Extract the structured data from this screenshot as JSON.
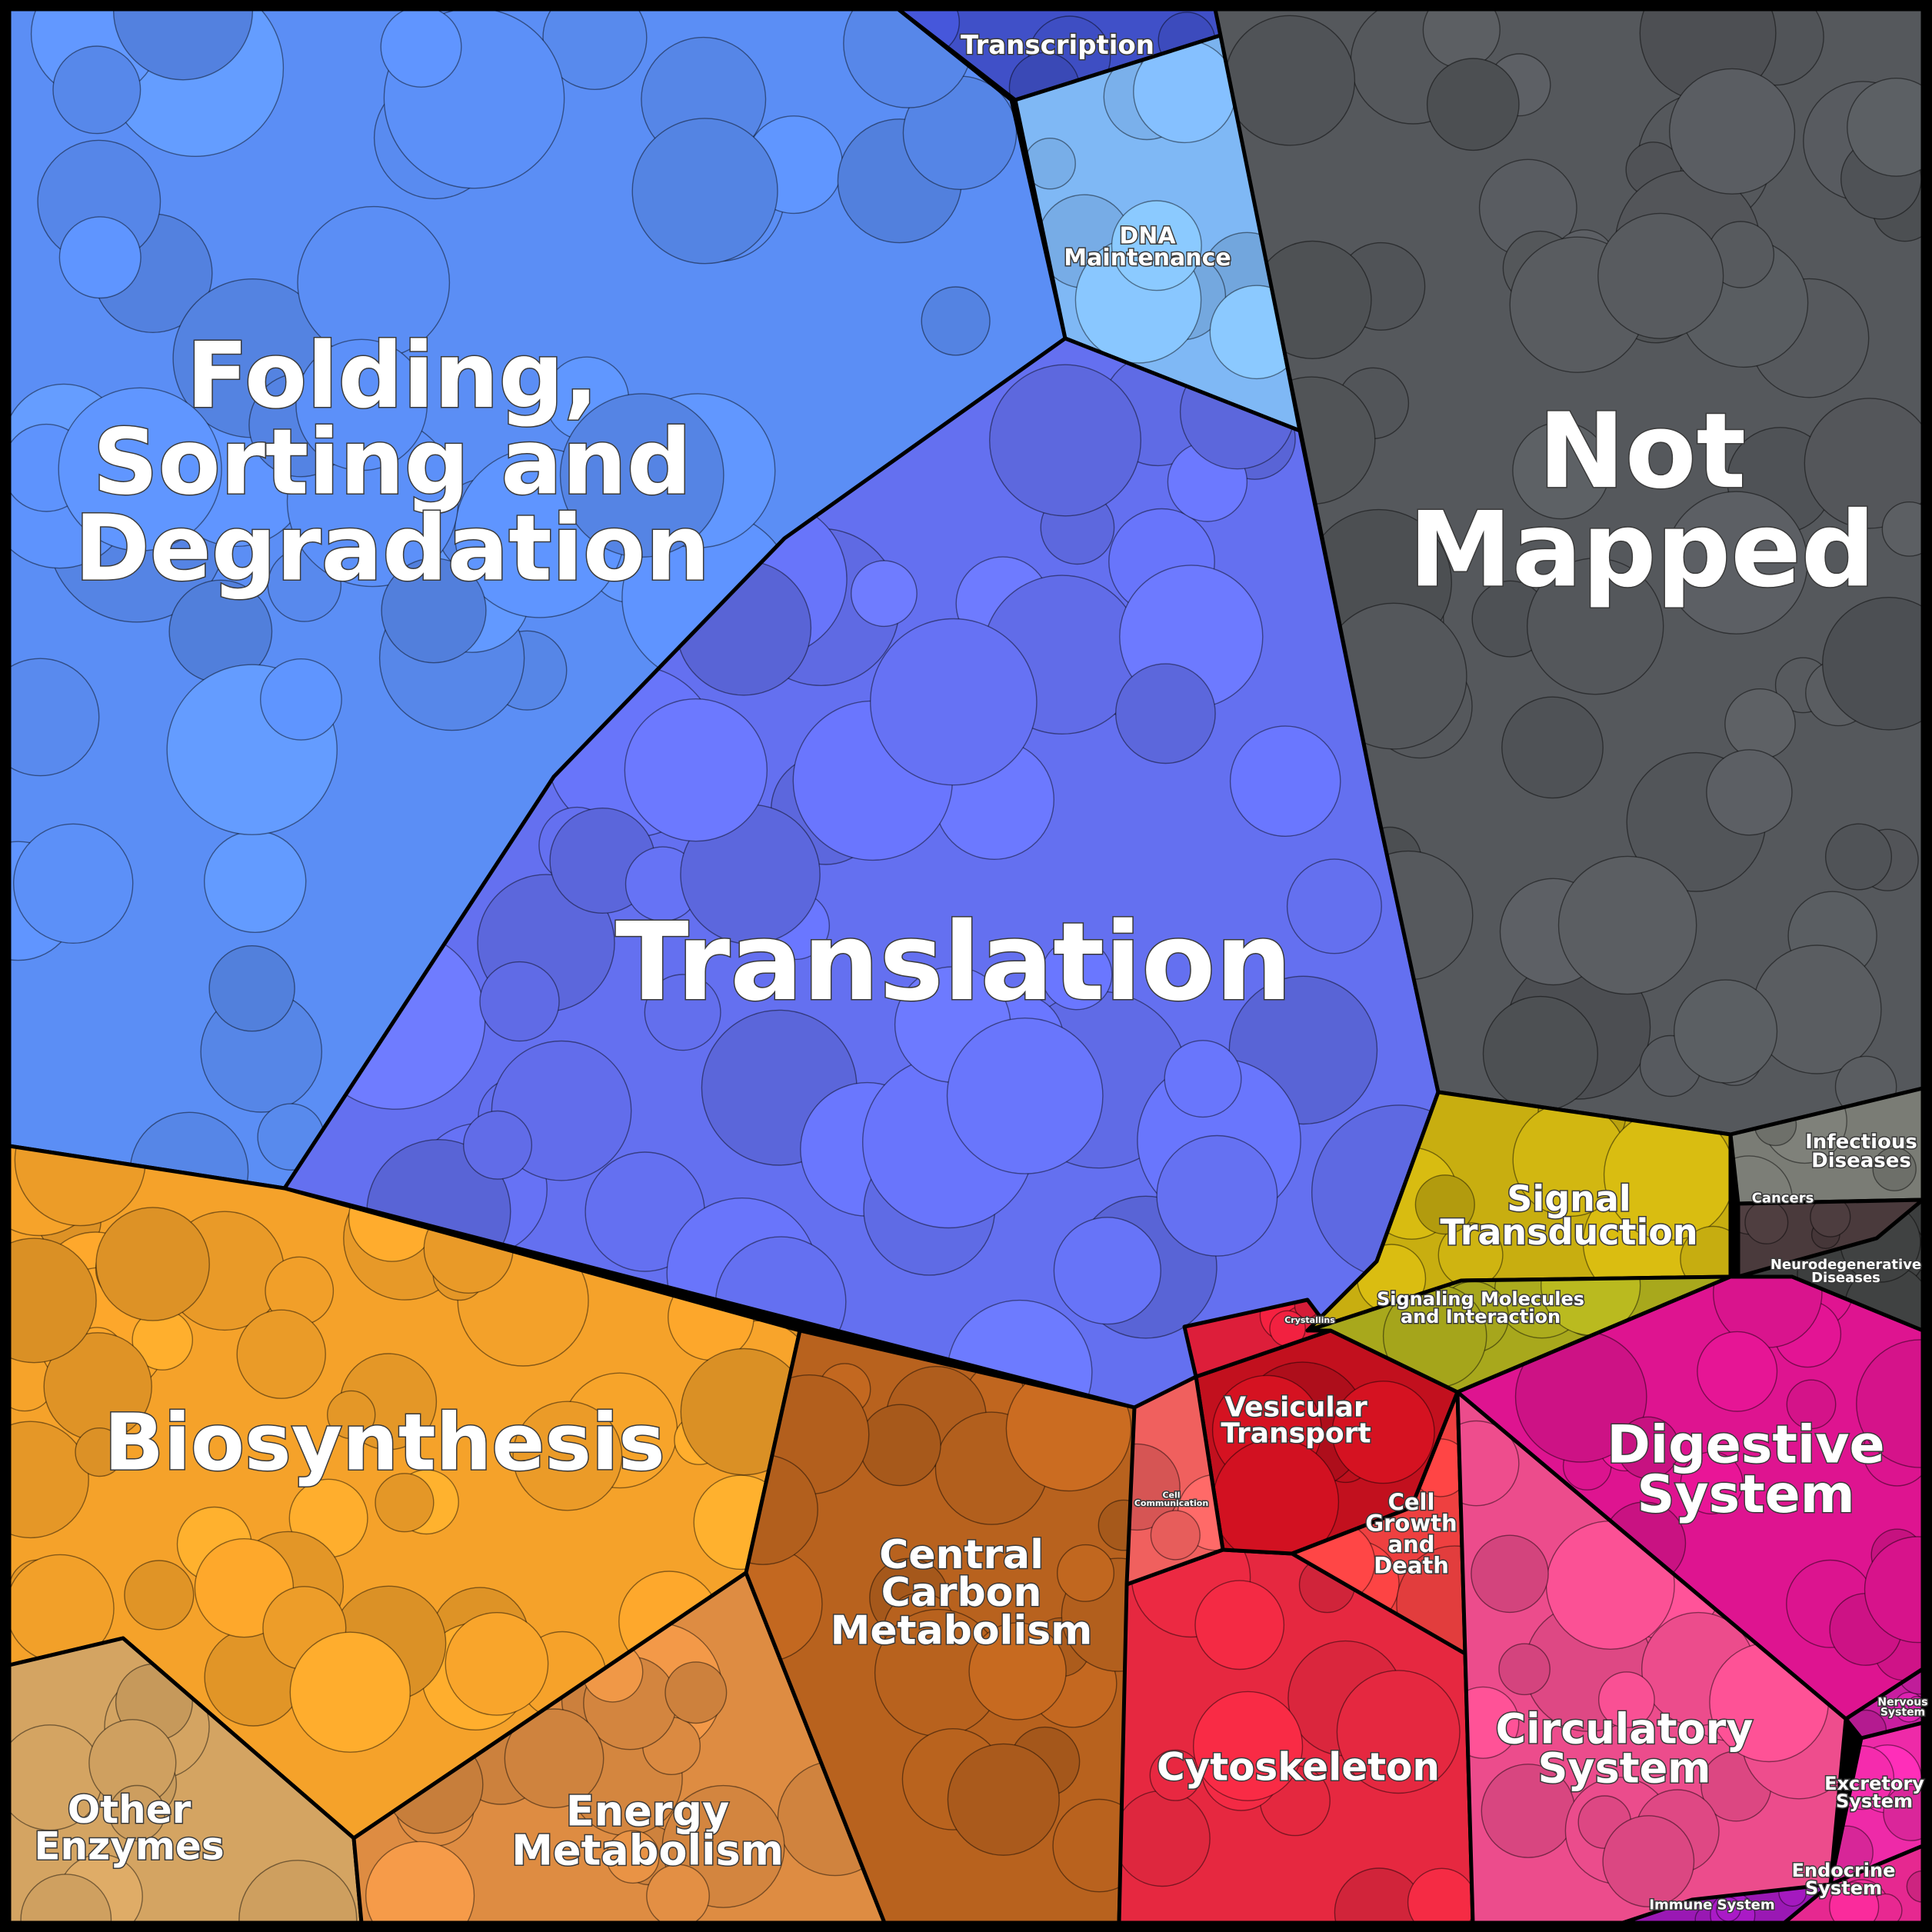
{
  "chart_data": {
    "type": "voronoi-treemap",
    "categories": [
      {
        "id": "folding",
        "label": "Folding,\nSorting and\nDegradation",
        "color": "#5b8ef5"
      },
      {
        "id": "transcription",
        "label": "Transcription",
        "color": "#4050c8"
      },
      {
        "id": "dna",
        "label": "DNA\nMaintenance",
        "color": "#7fb8f5"
      },
      {
        "id": "translation",
        "label": "Translation",
        "color": "#6470f0"
      },
      {
        "id": "notmapped",
        "label": "Not\nMapped",
        "color": "#55585c"
      },
      {
        "id": "biosynthesis",
        "label": "Biosynthesis",
        "color": "#f5a22a"
      },
      {
        "id": "otherenz",
        "label": "Other\nEnzymes",
        "color": "#d4a462"
      },
      {
        "id": "energy",
        "label": "Energy\nMetabolism",
        "color": "#de8c42"
      },
      {
        "id": "ccm",
        "label": "Central\nCarbon\nMetabolism",
        "color": "#b8621e"
      },
      {
        "id": "cytoskeleton",
        "label": "Cytoskeleton",
        "color": "#e62840"
      },
      {
        "id": "vesicular",
        "label": "Vesicular\nTransport",
        "color": "#c2101e"
      },
      {
        "id": "cellgrowth",
        "label": "Cell\nGrowth\nand\nDeath",
        "color": "#ee4040"
      },
      {
        "id": "cellcomm",
        "label": "Cell\nCommunication",
        "color": "#f0605e"
      },
      {
        "id": "crystallins",
        "label": "Crystallins",
        "color": "#dd1e3a"
      },
      {
        "id": "signaltrans",
        "label": "Signal\nTransduction",
        "color": "#c8ae10"
      },
      {
        "id": "signalmol",
        "label": "Signaling Molecules\nand Interaction",
        "color": "#a8a81c"
      },
      {
        "id": "infectious",
        "label": "Infectious\nDiseases",
        "color": "#7a7c75"
      },
      {
        "id": "cancers",
        "label": "Cancers",
        "color": "#4a3a3c"
      },
      {
        "id": "neuro",
        "label": "Neurodegenerative\nDiseases",
        "color": "#3c3e3e"
      },
      {
        "id": "digestive",
        "label": "Digestive\nSystem",
        "color": "#de1490"
      },
      {
        "id": "circulatory",
        "label": "Circulatory\nSystem",
        "color": "#ec4c8c"
      },
      {
        "id": "nervous",
        "label": "Nervous\nSystem",
        "color": "#c81ea0"
      },
      {
        "id": "excretory",
        "label": "Excretory\nSystem",
        "color": "#ee2aa8"
      },
      {
        "id": "endocrine",
        "label": "Endocrine\nSystem",
        "color": "#e62890"
      },
      {
        "id": "immune",
        "label": "Immune System",
        "color": "#9a18b4"
      }
    ]
  }
}
